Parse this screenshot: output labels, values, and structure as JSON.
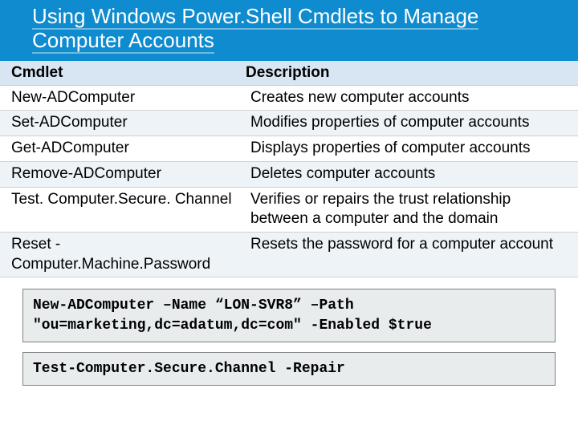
{
  "header": {
    "title_line1": "Using Windows Power.Shell Cmdlets to Manage",
    "title_line2": "Computer Accounts",
    "bg_color": "#0f8bd0",
    "underline_color": "#6fb9e0"
  },
  "table": {
    "header_bg": "#d7e6f2",
    "row_alt_bg": "#eef3f8",
    "row_border": "#d0d0d0",
    "col_widths": [
      "298px",
      "auto"
    ],
    "columns": [
      "Cmdlet",
      " Description"
    ],
    "rows": [
      [
        "New-ADComputer",
        "Creates new computer accounts"
      ],
      [
        "Set-ADComputer",
        "Modifies properties of computer accounts"
      ],
      [
        "Get-ADComputer",
        "Displays properties of computer accounts"
      ],
      [
        "Remove-ADComputer",
        "Deletes computer accounts"
      ],
      [
        "Test. Computer.Secure. Channel",
        "Verifies or repairs the trust relationship between a computer and the domain"
      ],
      [
        "Reset -Computer.Machine.Password",
        "Resets the password for a computer account"
      ]
    ]
  },
  "code": {
    "bg_color": "#e8eced",
    "border_color": "#808080",
    "blocks": [
      "New-ADComputer –Name  “LON-SVR8” –Path \"ou=marketing,dc=adatum,dc=com\"  -Enabled $true",
      "Test-Computer.Secure.Channel -Repair"
    ]
  }
}
